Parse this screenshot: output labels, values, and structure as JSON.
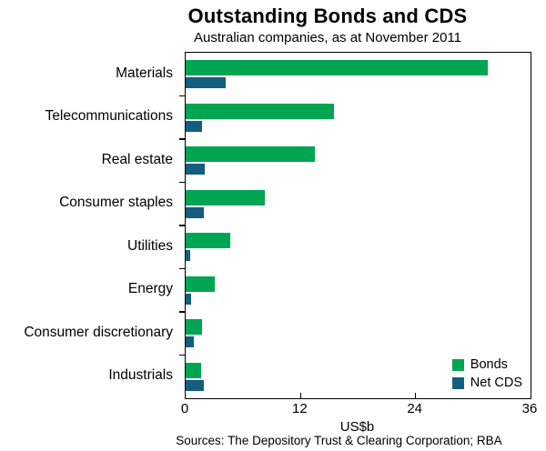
{
  "chart_data": {
    "type": "bar",
    "orientation": "horizontal",
    "title": "Outstanding Bonds and CDS",
    "subtitle": "Australian companies, as at November 2011",
    "xlabel": "US$b",
    "xlim": [
      0,
      36
    ],
    "xticks": [
      0,
      12,
      24,
      36
    ],
    "grid": false,
    "legend_position": "bottom-right",
    "categories": [
      "Materials",
      "Telecommunications",
      "Real estate",
      "Consumer staples",
      "Utilities",
      "Energy",
      "Consumer discretionary",
      "Industrials"
    ],
    "series": [
      {
        "name": "Bonds",
        "color": "#00a551",
        "values": [
          31.5,
          15.5,
          13.5,
          8.3,
          4.7,
          3.0,
          1.7,
          1.6
        ]
      },
      {
        "name": "Net CDS",
        "color": "#135e7e",
        "values": [
          4.2,
          1.7,
          2.0,
          1.9,
          0.5,
          0.6,
          0.9,
          1.9
        ]
      }
    ],
    "source": "Sources: The Depository Trust & Clearing Corporation; RBA"
  }
}
